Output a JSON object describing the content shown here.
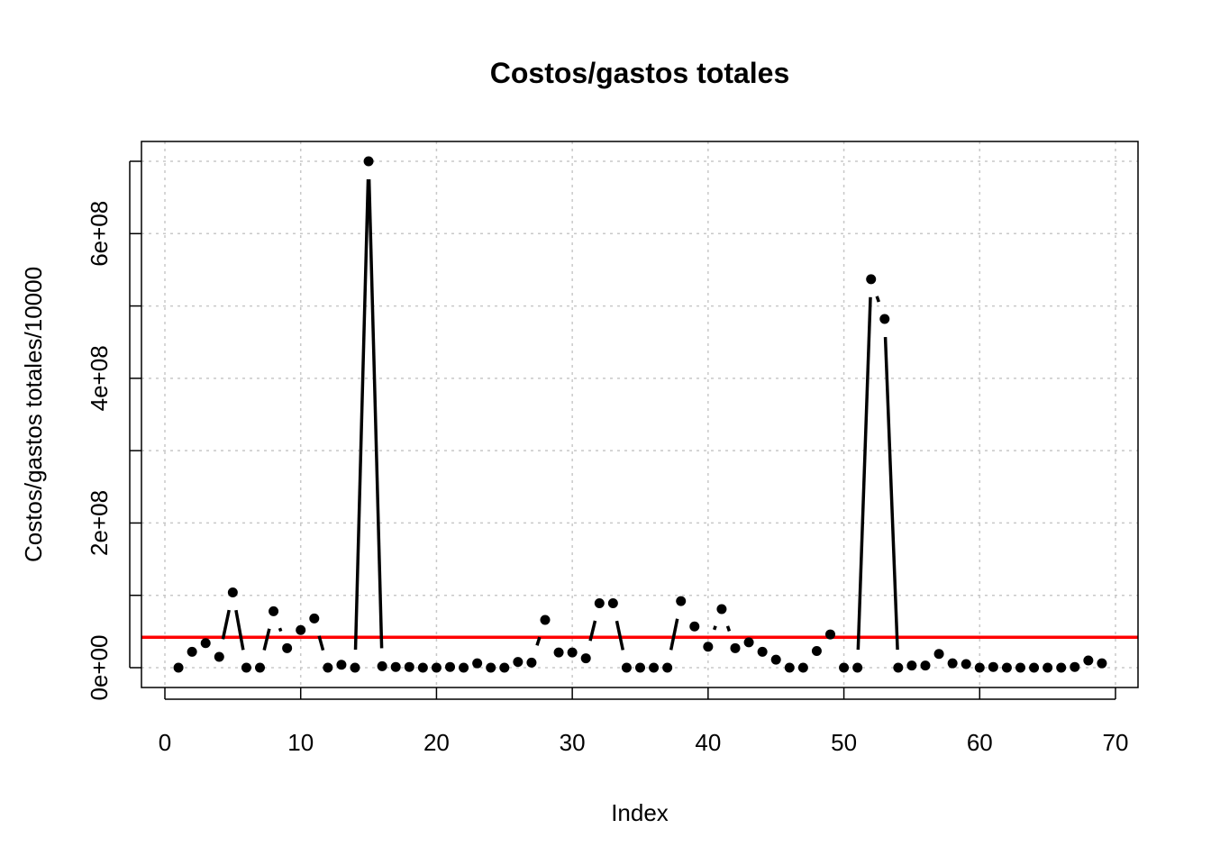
{
  "chart_data": {
    "type": "scatter",
    "plot_style": "points-and-lines",
    "title": "Costos/gastos totales",
    "xlabel": "Index",
    "ylabel": "Costos/gastos totales/10000",
    "xlim": [
      0,
      70
    ],
    "ylim": [
      0,
      700000000
    ],
    "x_ticks": [
      0,
      10,
      20,
      30,
      40,
      50,
      60,
      70
    ],
    "x_tick_labels": [
      "0",
      "10",
      "20",
      "30",
      "40",
      "50",
      "60",
      "70"
    ],
    "y_ticks": [
      0,
      200000000,
      400000000,
      600000000
    ],
    "y_tick_labels": [
      "0e+00",
      "2e+08",
      "4e+08",
      "6e+08"
    ],
    "grid": true,
    "series": [
      {
        "x": [
          1,
          2,
          3,
          4,
          5,
          6,
          7,
          8,
          9,
          10,
          11,
          12,
          13,
          14,
          15,
          16,
          17,
          18,
          19,
          20,
          21,
          22,
          23,
          24,
          25,
          26,
          27,
          28,
          29,
          30,
          31,
          32,
          33,
          34,
          35,
          36,
          37,
          38,
          39,
          40,
          41,
          42,
          43,
          44,
          45,
          46,
          47,
          48,
          49,
          50,
          51,
          52,
          53,
          54,
          55,
          56,
          57,
          58,
          59,
          60,
          61,
          62,
          63,
          64,
          65,
          66,
          67,
          68,
          69
        ],
        "values": [
          0,
          22000000,
          34000000,
          15000000,
          104000000,
          0,
          0,
          78000000,
          27000000,
          52000000,
          68000000,
          0,
          4000000,
          0,
          700000000,
          2000000,
          1000000,
          1000000,
          0,
          0,
          1000000,
          0,
          6000000,
          0,
          0,
          8000000,
          7000000,
          66000000,
          21000000,
          21000000,
          13000000,
          89000000,
          89000000,
          0,
          0,
          0,
          0,
          92000000,
          57000000,
          29000000,
          81000000,
          27000000,
          35000000,
          22000000,
          11000000,
          0,
          0,
          23000000,
          46000000,
          0,
          0,
          537000000,
          482000000,
          0,
          3000000,
          3000000,
          19000000,
          6000000,
          5000000,
          0,
          1000000,
          0,
          0,
          0,
          0,
          0,
          1000000,
          10000000,
          6000000
        ],
        "color": "#000000"
      }
    ],
    "reference_line": {
      "y": 42000000,
      "color": "#ff0000"
    }
  }
}
